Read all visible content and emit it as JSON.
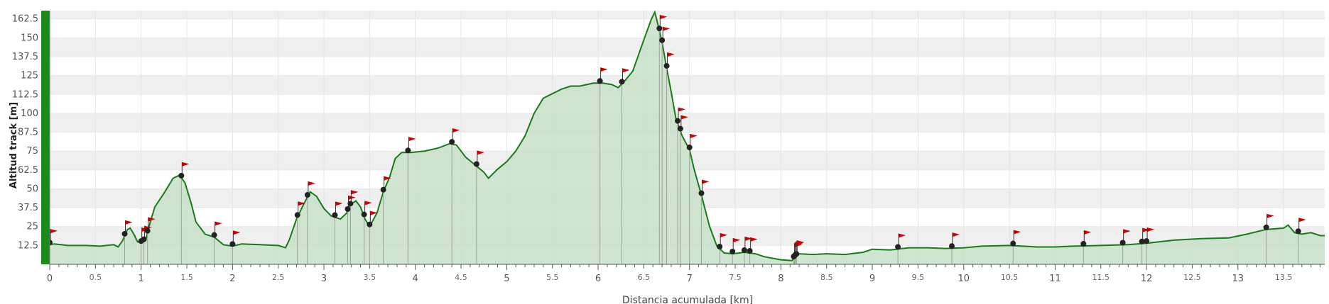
{
  "chart_data": {
    "type": "area",
    "xlabel": "Distancia acumulada [km]",
    "ylabel": "Altitud track [m]",
    "xlim": [
      0,
      13.95
    ],
    "ylim": [
      0,
      168
    ],
    "x_ticks": [
      0,
      0.5,
      1,
      1.5,
      2,
      2.5,
      3,
      3.5,
      4,
      4.5,
      5,
      5.5,
      6,
      6.5,
      7,
      7.5,
      8,
      8.5,
      9,
      9.5,
      10,
      10.5,
      11,
      11.5,
      12,
      12.5,
      13,
      13.5
    ],
    "x_tick_labels": [
      "0",
      "0.5",
      "1",
      "1.5",
      "2",
      "2.5",
      "3",
      "3.5",
      "4",
      "4.5",
      "5",
      "5.5",
      "6",
      "6.5",
      "7",
      "7.5",
      "8",
      "8.5",
      "9",
      "9.5",
      "10",
      "10.5",
      "11",
      "11.5",
      "12",
      "12.5",
      "13",
      "13.5"
    ],
    "y_ticks": [
      12.5,
      25,
      37.5,
      50,
      62.5,
      75,
      87.5,
      100,
      112.5,
      125,
      137.5,
      150,
      162.5
    ],
    "y_tick_labels": [
      "12.5",
      "25",
      "37.5",
      "50",
      "62.5",
      "75",
      "87.5",
      "100",
      "112.5",
      "125",
      "137.5",
      "150",
      "162.5"
    ],
    "grid": true,
    "colors": {
      "line": "#1a7a1a",
      "fill": "#c8e0c8",
      "band": "#efefef",
      "waypoint_flag": "#cc0000",
      "waypoint_dot": "#222222",
      "left_bar": "#1d8a1d"
    },
    "profile": [
      [
        0.0,
        13
      ],
      [
        0.05,
        13.5
      ],
      [
        0.2,
        12.5
      ],
      [
        0.4,
        12.5
      ],
      [
        0.55,
        12
      ],
      [
        0.7,
        13
      ],
      [
        0.75,
        11.5
      ],
      [
        0.8,
        16
      ],
      [
        0.85,
        23
      ],
      [
        0.88,
        24
      ],
      [
        0.92,
        20
      ],
      [
        0.96,
        15
      ],
      [
        1.0,
        14
      ],
      [
        1.05,
        16
      ],
      [
        1.1,
        28
      ],
      [
        1.15,
        38
      ],
      [
        1.25,
        47
      ],
      [
        1.35,
        57
      ],
      [
        1.42,
        59
      ],
      [
        1.48,
        54
      ],
      [
        1.55,
        40
      ],
      [
        1.6,
        28
      ],
      [
        1.7,
        20
      ],
      [
        1.8,
        18
      ],
      [
        1.9,
        13
      ],
      [
        2.0,
        12
      ],
      [
        2.1,
        13.5
      ],
      [
        2.3,
        13
      ],
      [
        2.5,
        12.5
      ],
      [
        2.58,
        11
      ],
      [
        2.62,
        16
      ],
      [
        2.7,
        30
      ],
      [
        2.78,
        40
      ],
      [
        2.85,
        48
      ],
      [
        2.92,
        45
      ],
      [
        3.0,
        37
      ],
      [
        3.08,
        32
      ],
      [
        3.18,
        30
      ],
      [
        3.25,
        34
      ],
      [
        3.3,
        40
      ],
      [
        3.35,
        42
      ],
      [
        3.4,
        38
      ],
      [
        3.45,
        30
      ],
      [
        3.5,
        25
      ],
      [
        3.58,
        34
      ],
      [
        3.65,
        48
      ],
      [
        3.72,
        58
      ],
      [
        3.78,
        70
      ],
      [
        3.85,
        74
      ],
      [
        3.95,
        74
      ],
      [
        4.1,
        75
      ],
      [
        4.25,
        77
      ],
      [
        4.38,
        80
      ],
      [
        4.45,
        79
      ],
      [
        4.55,
        71
      ],
      [
        4.65,
        66
      ],
      [
        4.75,
        61
      ],
      [
        4.8,
        57
      ],
      [
        4.9,
        63
      ],
      [
        5.0,
        68
      ],
      [
        5.1,
        75
      ],
      [
        5.2,
        85
      ],
      [
        5.3,
        100
      ],
      [
        5.4,
        110
      ],
      [
        5.5,
        113
      ],
      [
        5.6,
        116
      ],
      [
        5.7,
        118
      ],
      [
        5.8,
        118
      ],
      [
        5.95,
        120
      ],
      [
        6.05,
        120
      ],
      [
        6.15,
        119
      ],
      [
        6.22,
        117
      ],
      [
        6.3,
        122
      ],
      [
        6.38,
        128
      ],
      [
        6.45,
        140
      ],
      [
        6.52,
        152
      ],
      [
        6.58,
        162
      ],
      [
        6.62,
        167
      ],
      [
        6.65,
        160
      ],
      [
        6.7,
        147
      ],
      [
        6.75,
        130
      ],
      [
        6.8,
        114
      ],
      [
        6.85,
        97
      ],
      [
        6.92,
        85
      ],
      [
        7.0,
        76
      ],
      [
        7.05,
        63
      ],
      [
        7.12,
        48
      ],
      [
        7.22,
        25
      ],
      [
        7.3,
        12
      ],
      [
        7.38,
        7.5
      ],
      [
        7.48,
        7
      ],
      [
        7.6,
        8
      ],
      [
        7.72,
        7
      ],
      [
        7.82,
        5
      ],
      [
        8.0,
        3
      ],
      [
        8.12,
        2.5
      ],
      [
        8.16,
        5
      ],
      [
        8.2,
        7
      ],
      [
        8.35,
        6.5
      ],
      [
        8.5,
        7
      ],
      [
        8.7,
        6.5
      ],
      [
        8.9,
        8
      ],
      [
        9.0,
        10
      ],
      [
        9.2,
        9.5
      ],
      [
        9.4,
        11
      ],
      [
        9.6,
        11
      ],
      [
        9.8,
        10.5
      ],
      [
        10.0,
        11
      ],
      [
        10.2,
        12
      ],
      [
        10.5,
        12.5
      ],
      [
        10.8,
        11.5
      ],
      [
        11.0,
        11.5
      ],
      [
        11.2,
        12
      ],
      [
        11.5,
        12.5
      ],
      [
        11.8,
        13
      ],
      [
        12.0,
        14
      ],
      [
        12.3,
        16
      ],
      [
        12.6,
        17
      ],
      [
        12.9,
        17.5
      ],
      [
        13.1,
        20
      ],
      [
        13.3,
        23
      ],
      [
        13.5,
        24
      ],
      [
        13.55,
        26
      ],
      [
        13.62,
        21
      ],
      [
        13.7,
        20
      ],
      [
        13.8,
        21
      ],
      [
        13.9,
        19
      ],
      [
        13.95,
        19
      ]
    ],
    "waypoints_km": [
      0.0,
      0.82,
      1.0,
      1.03,
      1.07,
      1.44,
      1.8,
      2.0,
      2.71,
      2.82,
      3.12,
      3.26,
      3.29,
      3.44,
      3.5,
      3.65,
      3.92,
      4.4,
      4.67,
      6.02,
      6.26,
      6.67,
      6.7,
      6.75,
      6.87,
      6.9,
      7.0,
      7.13,
      7.33,
      7.47,
      7.6,
      7.66,
      8.14,
      8.15,
      8.16,
      8.17,
      9.28,
      9.87,
      10.54,
      11.31,
      11.74,
      11.95,
      12.0,
      13.31,
      13.66
    ]
  }
}
